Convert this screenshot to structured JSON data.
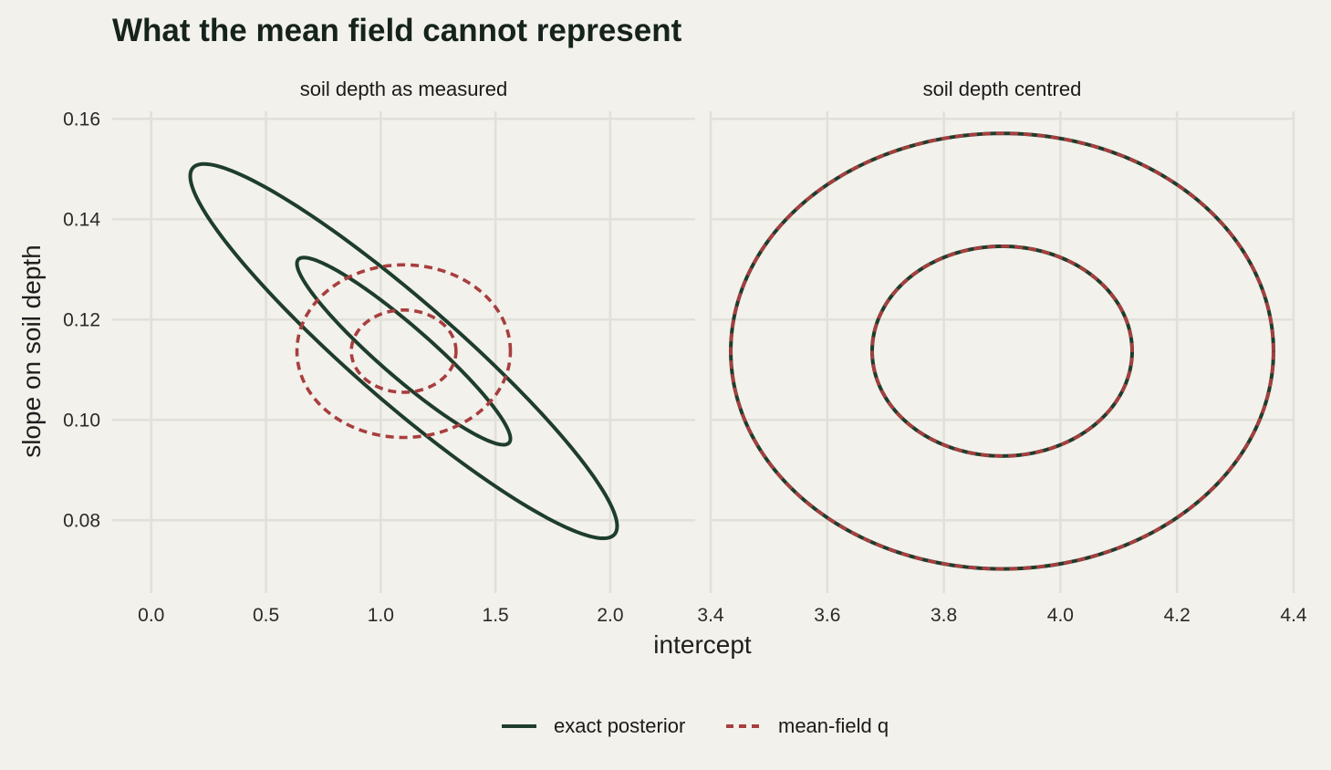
{
  "title": "What the mean field cannot represent",
  "chart_data": {
    "type": "line",
    "title": "What the mean field cannot represent",
    "xlabel": "intercept",
    "ylabel": "slope on soil depth",
    "colors": {
      "exact": "#1e3d2c",
      "meanfield": "#a83e3e",
      "background": "#f2f1eb",
      "grid": "#e1e0d9"
    },
    "legend": {
      "position": "bottom",
      "entries": [
        {
          "label": "exact posterior",
          "style": "solid",
          "color": "#1e3d2c"
        },
        {
          "label": "mean-field q",
          "style": "dashed",
          "color": "#a83e3e"
        }
      ]
    },
    "shared_y": {
      "ylim": [
        0.0655,
        0.1615
      ],
      "ticks": [
        0.08,
        0.1,
        0.12,
        0.14,
        0.16
      ],
      "tick_labels": [
        "0.08",
        "0.10",
        "0.12",
        "0.14",
        "0.16"
      ]
    },
    "panels": [
      {
        "strip": "soil depth as measured",
        "xlim": [
          -0.17,
          2.37
        ],
        "x_ticks": [
          0,
          0.5,
          1,
          1.5,
          2
        ],
        "x_tick_labels": [
          "0.0",
          "0.5",
          "1.0",
          "1.5",
          "2.0"
        ],
        "ellipses": [
          {
            "series": "exact posterior",
            "level": "inner",
            "center": [
              1.1,
              0.1137
            ],
            "sd": [
              0.465,
              0.01865
            ],
            "corr": -0.935
          },
          {
            "series": "exact posterior",
            "level": "outer",
            "center": [
              1.1,
              0.1137
            ],
            "sd": [
              0.93,
              0.0373
            ],
            "corr": -0.935
          },
          {
            "series": "mean-field q",
            "level": "inner",
            "center": [
              1.1,
              0.1137
            ],
            "sd": [
              0.228,
              0.0082
            ],
            "corr": 0
          },
          {
            "series": "mean-field q",
            "level": "outer",
            "center": [
              1.1,
              0.1137
            ],
            "sd": [
              0.465,
              0.0172
            ],
            "corr": 0
          }
        ]
      },
      {
        "strip": "soil depth centred",
        "xlim": [
          3.4,
          4.4
        ],
        "x_ticks": [
          3.4,
          3.6,
          3.8,
          4.0,
          4.2,
          4.4
        ],
        "x_tick_labels": [
          "3.4",
          "3.6",
          "3.8",
          "4.0",
          "4.2",
          "4.4"
        ],
        "ellipses": [
          {
            "series": "exact posterior",
            "level": "inner",
            "center": [
              3.9,
              0.1137
            ],
            "sd": [
              0.223,
              0.0209
            ],
            "corr": 0
          },
          {
            "series": "exact posterior",
            "level": "outer",
            "center": [
              3.9,
              0.1137
            ],
            "sd": [
              0.4655,
              0.0434
            ],
            "corr": 0
          },
          {
            "series": "mean-field q",
            "level": "inner",
            "center": [
              3.9,
              0.1137
            ],
            "sd": [
              0.223,
              0.0209
            ],
            "corr": 0
          },
          {
            "series": "mean-field q",
            "level": "outer",
            "center": [
              3.9,
              0.1137
            ],
            "sd": [
              0.4655,
              0.0434
            ],
            "corr": 0
          }
        ]
      }
    ]
  }
}
